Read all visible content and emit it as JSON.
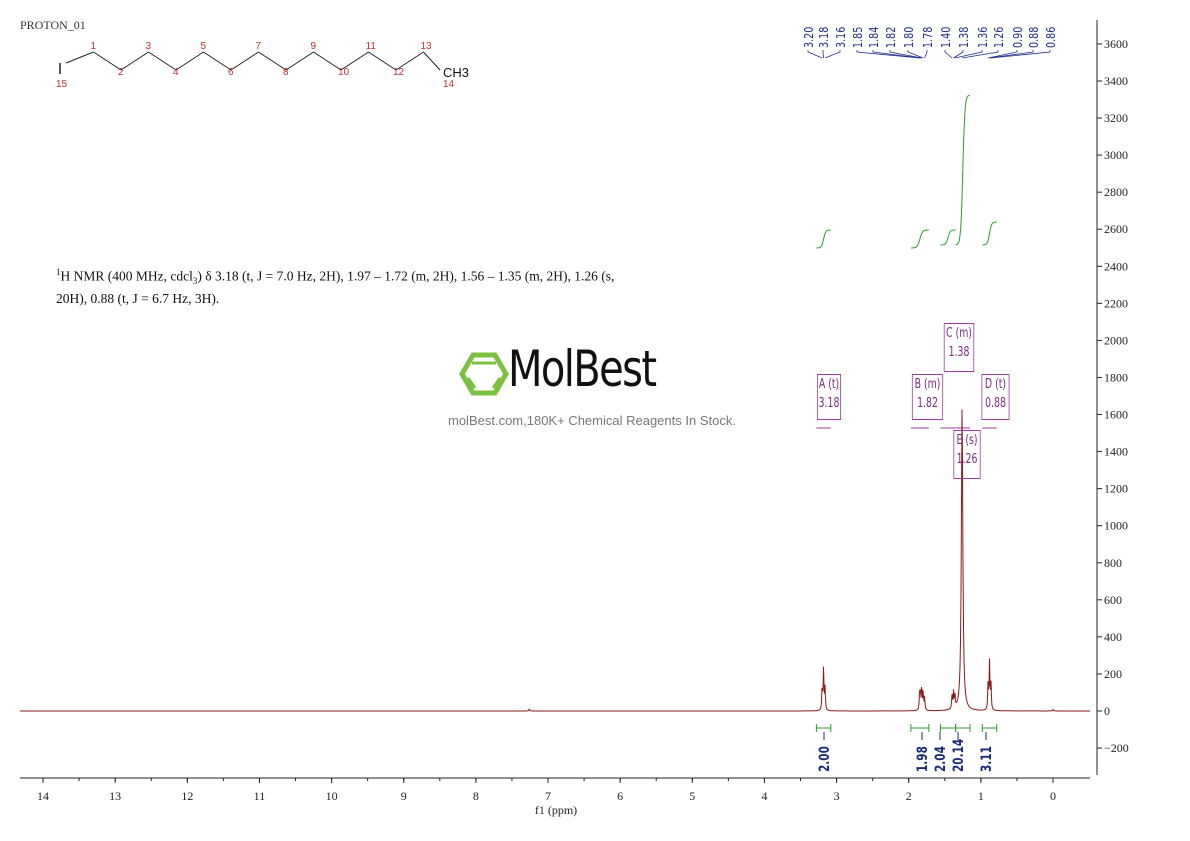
{
  "title": "PROTON_01",
  "molecule": {
    "atoms": [
      "15",
      "1",
      "2",
      "3",
      "4",
      "5",
      "6",
      "7",
      "8",
      "9",
      "10",
      "11",
      "12",
      "13",
      "14"
    ],
    "end_group": "CH3",
    "iodine": "I"
  },
  "description": {
    "sup": "1",
    "pre": "H NMR (400 MHz, cdcl",
    "sub": "3",
    "post": ") δ 3.18 (t, J = 7.0 Hz, 2H), 1.97 – 1.72 (m, 2H), 1.56 – 1.35 (m, 2H), 1.26 (s, 20H), 0.88 (t, J = 6.7 Hz, 3H)."
  },
  "watermark": {
    "logo": "MolBest",
    "tagline": "molBest.com,180K+ Chemical Reagents In Stock.",
    "color": "#7cc242"
  },
  "colors": {
    "spectrum": "#8b1a1a",
    "integral": "#2e9a2e",
    "peak_label": "#22308a",
    "multiplet": "#9c3c9c"
  },
  "chart_data": {
    "type": "line",
    "xlabel": "f1 (ppm)",
    "x_reversed": true,
    "xlim": [
      14.3,
      -0.5
    ],
    "ylim": [
      -350,
      3700
    ],
    "xticks": [
      14,
      13,
      12,
      11,
      10,
      9,
      8,
      7,
      6,
      5,
      4,
      3,
      2,
      1,
      0
    ],
    "yticks": [
      -200,
      0,
      200,
      400,
      600,
      800,
      1000,
      1200,
      1400,
      1600,
      1800,
      2000,
      2200,
      2400,
      2600,
      2800,
      3000,
      3200,
      3400,
      3600
    ],
    "peaks": [
      {
        "ppm": 3.2,
        "height": 120
      },
      {
        "ppm": 3.18,
        "height": 230
      },
      {
        "ppm": 3.16,
        "height": 120
      },
      {
        "ppm": 1.85,
        "height": 70
      },
      {
        "ppm": 1.84,
        "height": 100
      },
      {
        "ppm": 1.82,
        "height": 130
      },
      {
        "ppm": 1.8,
        "height": 100
      },
      {
        "ppm": 1.78,
        "height": 70
      },
      {
        "ppm": 1.4,
        "height": 70
      },
      {
        "ppm": 1.38,
        "height": 90
      },
      {
        "ppm": 1.36,
        "height": 70
      },
      {
        "ppm": 1.26,
        "height": 1650
      },
      {
        "ppm": 0.9,
        "height": 140
      },
      {
        "ppm": 0.88,
        "height": 260
      },
      {
        "ppm": 0.86,
        "height": 140
      },
      {
        "ppm": 7.26,
        "height": 12
      },
      {
        "ppm": 0.0,
        "height": 8
      }
    ],
    "peak_labels": [
      "3.20",
      "3.18",
      "3.16",
      "1.85",
      "1.84",
      "1.82",
      "1.80",
      "1.78",
      "1.40",
      "1.38",
      "1.36",
      "1.26",
      "0.90",
      "0.88",
      "0.86"
    ],
    "integrals": [
      {
        "from": 3.28,
        "to": 3.08,
        "value": "2.00"
      },
      {
        "from": 1.97,
        "to": 1.72,
        "value": "1.98"
      },
      {
        "from": 1.56,
        "to": 1.35,
        "value": "2.04"
      },
      {
        "from": 1.35,
        "to": 1.15,
        "value": "20.14"
      },
      {
        "from": 0.98,
        "to": 0.78,
        "value": "3.11"
      }
    ],
    "multiplets": [
      {
        "label": "A (t)",
        "shift": "3.18"
      },
      {
        "label": "B (m)",
        "shift": "1.82"
      },
      {
        "label": "C (m)",
        "shift": "1.38"
      },
      {
        "label": "D (t)",
        "shift": "0.88"
      },
      {
        "label": "E (s)",
        "shift": "1.26"
      }
    ]
  }
}
